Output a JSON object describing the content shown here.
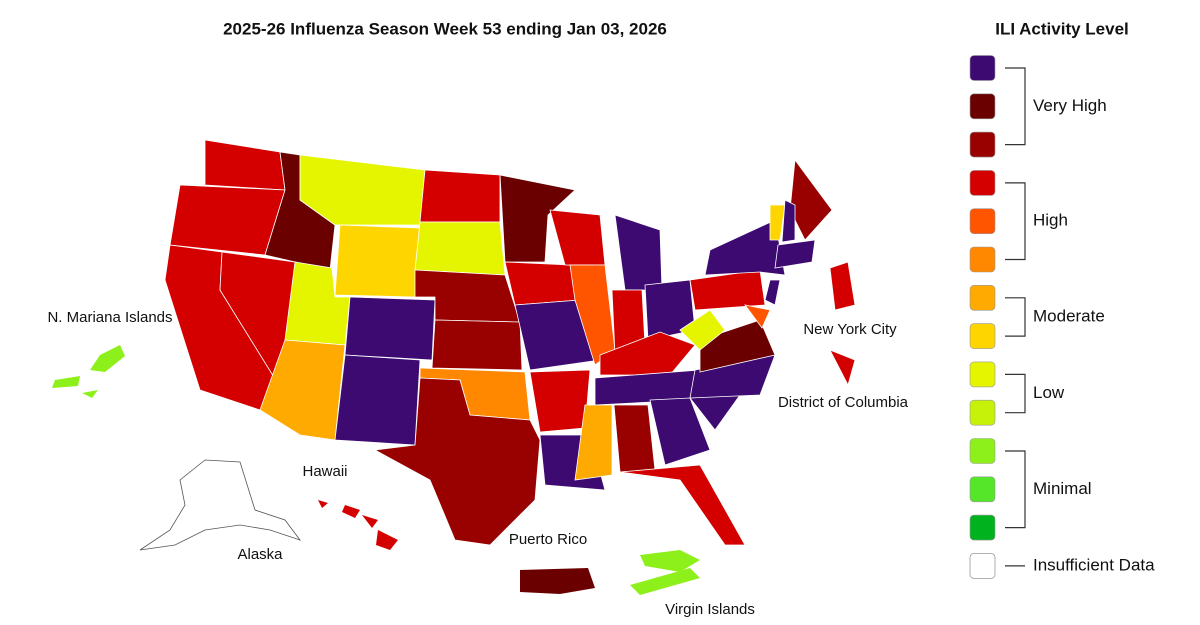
{
  "title": "2025-26 Influenza Season Week 53 ending Jan 03, 2026",
  "map_labels": [
    "N. Mariana Islands",
    "Hawaii",
    "Alaska",
    "Puerto Rico",
    "Virgin Islands",
    "New York City",
    "District of Columbia"
  ],
  "legend": {
    "title": "ILI Activity Level",
    "groups": [
      {
        "label": "Very High",
        "colors": [
          "#3d0a72",
          "#6b0000",
          "#990000"
        ]
      },
      {
        "label": "High",
        "colors": [
          "#d40000",
          "#ff5500",
          "#ff8800"
        ]
      },
      {
        "label": "Moderate",
        "colors": [
          "#ffaa00",
          "#ffd500"
        ]
      },
      {
        "label": "Low",
        "colors": [
          "#e5f500",
          "#c6f20a"
        ]
      },
      {
        "label": "Minimal",
        "colors": [
          "#8ef01a",
          "#55e62a",
          "#00b21e"
        ]
      }
    ],
    "insufficient": {
      "label": "Insufficient Data",
      "color": "#ffffff"
    }
  }
}
